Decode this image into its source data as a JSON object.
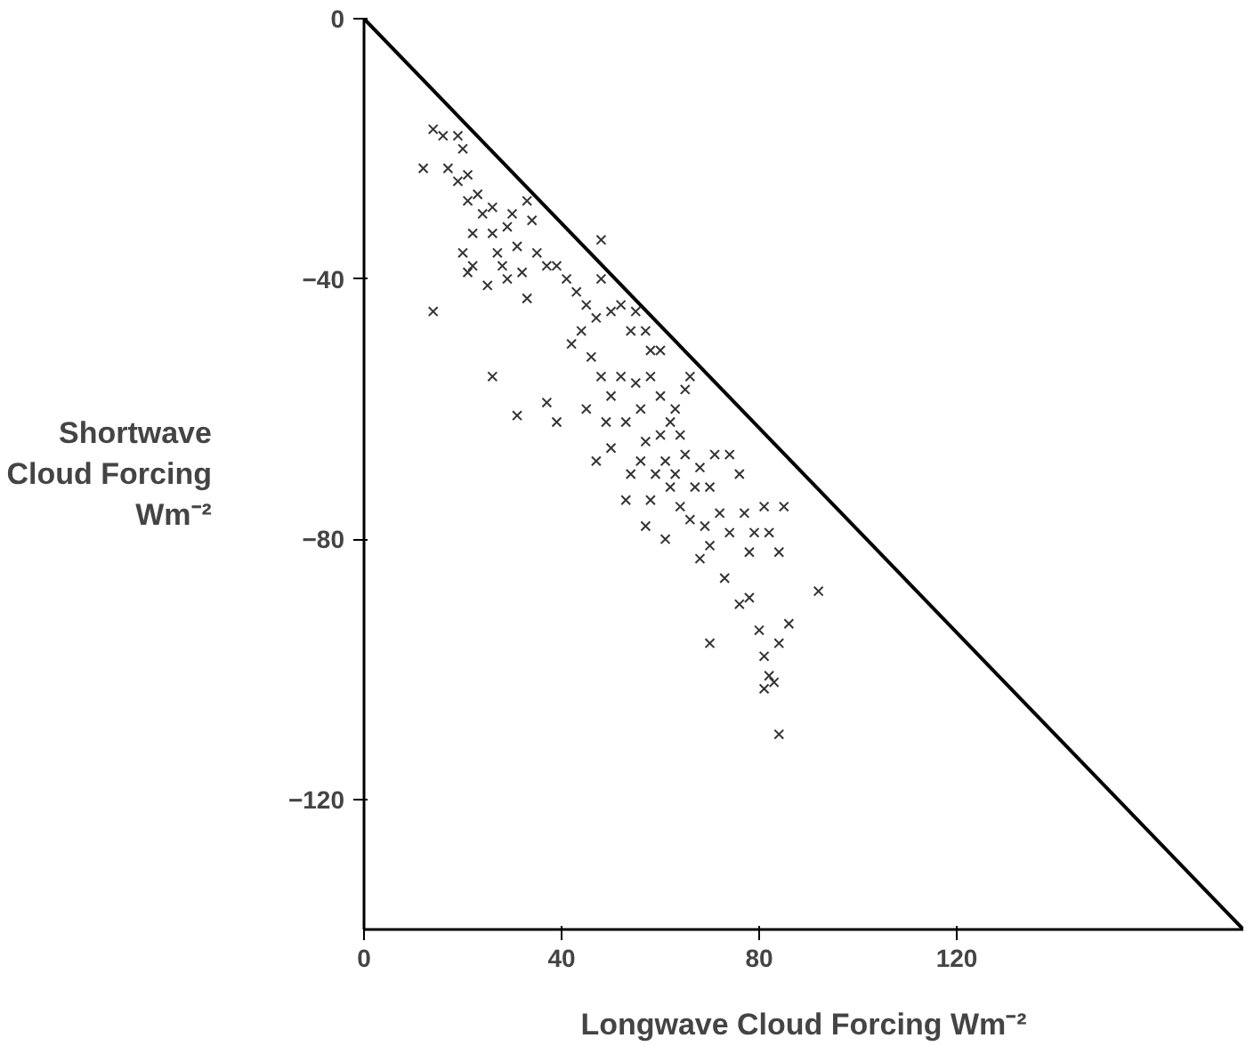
{
  "chart_data": {
    "type": "scatter",
    "xlabel": "Longwave Cloud Forcing Wm⁻²",
    "ylabel": "Shortwave Cloud Forcing Wm⁻²",
    "xlim": [
      0,
      178
    ],
    "ylim": [
      -140,
      0
    ],
    "xticks": [
      0,
      40,
      80,
      120
    ],
    "yticks": [
      0,
      -40,
      -80,
      -120
    ],
    "grid": false,
    "marker": "cross",
    "series": [
      {
        "color": "#333333",
        "x": [
          14,
          16,
          19,
          20,
          12,
          17,
          19,
          21,
          23,
          21,
          24,
          22,
          26,
          26,
          29,
          30,
          33,
          34,
          31,
          27,
          28,
          20,
          22,
          21,
          25,
          29,
          32,
          35,
          37,
          33,
          14,
          26,
          31,
          39,
          41,
          43,
          48,
          48,
          45,
          47,
          44,
          50,
          42,
          46,
          48,
          52,
          55,
          54,
          57,
          58,
          60,
          58,
          52,
          50,
          55,
          56,
          53,
          49,
          45,
          37,
          39,
          57,
          60,
          62,
          63,
          65,
          66,
          61,
          59,
          63,
          65,
          68,
          67,
          70,
          71,
          74,
          76,
          72,
          69,
          66,
          64,
          70,
          74,
          77,
          79,
          81,
          85,
          82,
          78,
          84,
          92,
          73,
          76,
          78,
          80,
          70,
          81,
          84,
          82,
          81,
          83,
          84,
          86,
          62,
          60,
          64,
          56,
          54,
          50,
          47,
          53,
          58,
          57,
          61,
          68
        ],
        "values": [
          -17,
          -18,
          -18,
          -20,
          -23,
          -23,
          -25,
          -24,
          -27,
          -28,
          -30,
          -33,
          -29,
          -33,
          -32,
          -30,
          -28,
          -31,
          -35,
          -36,
          -38,
          -36,
          -38,
          -39,
          -41,
          -40,
          -39,
          -36,
          -38,
          -43,
          -45,
          -55,
          -61,
          -38,
          -40,
          -42,
          -34,
          -40,
          -44,
          -46,
          -48,
          -45,
          -50,
          -52,
          -55,
          -44,
          -45,
          -48,
          -48,
          -51,
          -51,
          -55,
          -55,
          -58,
          -56,
          -60,
          -62,
          -62,
          -60,
          -59,
          -62,
          -65,
          -64,
          -62,
          -60,
          -57,
          -55,
          -68,
          -70,
          -70,
          -67,
          -69,
          -72,
          -72,
          -67,
          -67,
          -70,
          -76,
          -78,
          -77,
          -75,
          -81,
          -79,
          -76,
          -79,
          -75,
          -75,
          -79,
          -82,
          -82,
          -88,
          -86,
          -90,
          -89,
          -94,
          -96,
          -98,
          -96,
          -101,
          -103,
          -102,
          -110,
          -93,
          -72,
          -58,
          -64,
          -68,
          -70,
          -66,
          -68,
          -74,
          -74,
          -78,
          -80,
          -83
        ]
      },
      {
        "type": "line",
        "color": "#000000",
        "marker": "none",
        "x": [
          0,
          178
        ],
        "values": [
          0,
          -140
        ]
      }
    ]
  }
}
